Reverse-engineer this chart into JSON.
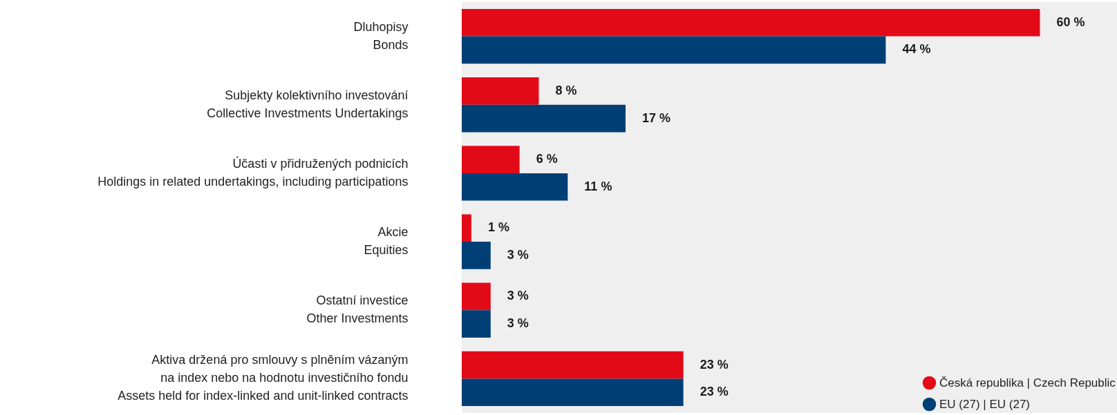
{
  "chart_data": {
    "type": "bar",
    "orientation": "horizontal",
    "categories": [
      "Dluhopisy\nBonds",
      "Subjekty kolektivního investování\nCollective Investments Undertakings",
      "Účasti v přidružených podnicích\nHoldings in related undertakings, including participations",
      "Akcie\nEquities",
      "Ostatní investice\nOther Investments",
      "Aktiva držená pro smlouvy s plněním vázaným\nna index nebo na hodnotu investičního fondu\nAssets held for index-linked and unit-linked contracts"
    ],
    "series": [
      {
        "name": "Česká republika | Czech Republic",
        "color": "#e30a18",
        "values": [
          60,
          8,
          6,
          1,
          3,
          23
        ],
        "value_labels": [
          "60 %",
          "8 %",
          "6 %",
          "1 %",
          "3 %",
          "23 %"
        ]
      },
      {
        "name": "EU (27) | EU (27)",
        "color": "#003f75",
        "values": [
          44,
          17,
          11,
          3,
          3,
          23
        ],
        "value_labels": [
          "44 %",
          "17 %",
          "11 %",
          "3 %",
          "3 %",
          "23 %"
        ]
      }
    ],
    "xlim": [
      0,
      68
    ],
    "legend": "bottom right"
  }
}
